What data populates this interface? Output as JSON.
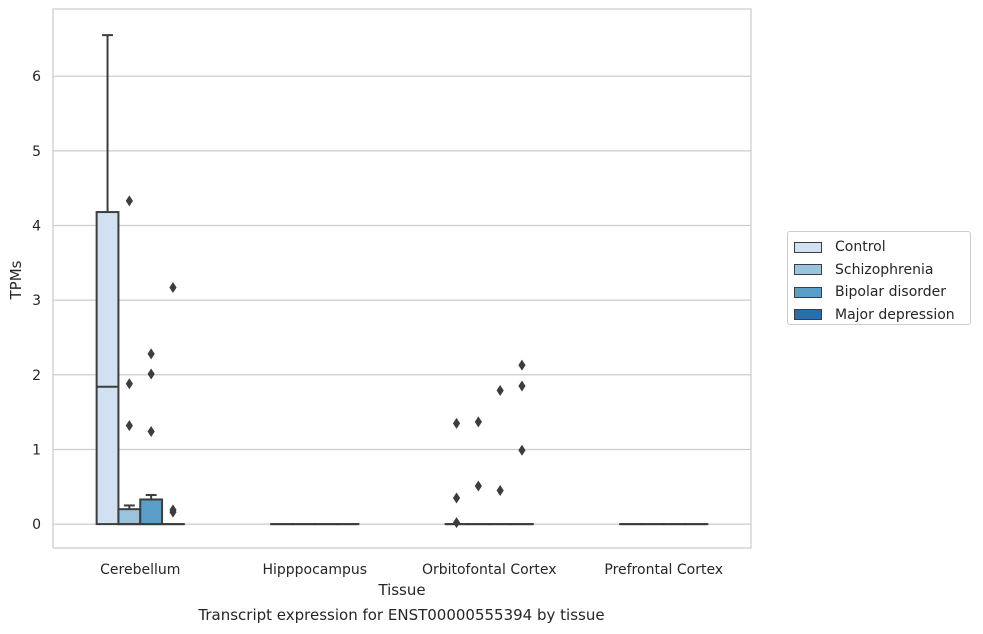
{
  "chart_data": {
    "type": "box",
    "xlabel": "Tissue",
    "ylabel": "TPMs",
    "caption": "Transcript expression for ENST00000555394 by tissue",
    "ylim": [
      -0.32,
      6.9
    ],
    "yticks": [
      0,
      1,
      2,
      3,
      4,
      5,
      6
    ],
    "categories": [
      "Cerebellum",
      "Hipppocampus",
      "Orbitofontal Cortex",
      "Prefrontal Cortex"
    ],
    "grid": "horizontal",
    "legend_position": "right",
    "series": [
      {
        "name": "Control",
        "color": "#d1e1f1",
        "boxes": [
          {
            "min": 0,
            "q1": 0,
            "median": 1.84,
            "q3": 4.18,
            "max": 6.55,
            "outliers": []
          },
          {
            "min": 0,
            "q1": 0,
            "median": 0,
            "q3": 0,
            "max": 0,
            "outliers": []
          },
          {
            "min": 0,
            "q1": 0,
            "median": 0,
            "q3": 0,
            "max": 0,
            "outliers": [
              1.35,
              0.35,
              0.02
            ]
          },
          {
            "min": 0,
            "q1": 0,
            "median": 0,
            "q3": 0,
            "max": 0,
            "outliers": []
          }
        ]
      },
      {
        "name": "Schizophrenia",
        "color": "#9ac3de",
        "boxes": [
          {
            "min": 0,
            "q1": 0,
            "median": 0,
            "q3": 0.2,
            "max": 0.25,
            "outliers": [
              4.33,
              1.88,
              1.32
            ]
          },
          {
            "min": 0,
            "q1": 0,
            "median": 0,
            "q3": 0,
            "max": 0,
            "outliers": []
          },
          {
            "min": 0,
            "q1": 0,
            "median": 0,
            "q3": 0,
            "max": 0,
            "outliers": [
              1.37,
              0.51
            ]
          },
          {
            "min": 0,
            "q1": 0,
            "median": 0,
            "q3": 0,
            "max": 0,
            "outliers": []
          }
        ]
      },
      {
        "name": "Bipolar disorder",
        "color": "#5a9ec9",
        "boxes": [
          {
            "min": 0,
            "q1": 0,
            "median": 0,
            "q3": 0.33,
            "max": 0.39,
            "outliers": [
              2.28,
              2.01,
              1.24
            ]
          },
          {
            "min": 0,
            "q1": 0,
            "median": 0,
            "q3": 0,
            "max": 0,
            "outliers": []
          },
          {
            "min": 0,
            "q1": 0,
            "median": 0,
            "q3": 0,
            "max": 0,
            "outliers": [
              1.79,
              0.45
            ]
          },
          {
            "min": 0,
            "q1": 0,
            "median": 0,
            "q3": 0,
            "max": 0,
            "outliers": []
          }
        ]
      },
      {
        "name": "Major depression",
        "color": "#2a6fad",
        "boxes": [
          {
            "min": 0,
            "q1": 0,
            "median": 0,
            "q3": 0,
            "max": 0,
            "outliers": [
              3.17,
              0.19,
              0.16
            ]
          },
          {
            "min": 0,
            "q1": 0,
            "median": 0,
            "q3": 0,
            "max": 0,
            "outliers": []
          },
          {
            "min": 0,
            "q1": 0,
            "median": 0,
            "q3": 0,
            "max": 0,
            "outliers": [
              2.13,
              1.85,
              0.99
            ]
          },
          {
            "min": 0,
            "q1": 0,
            "median": 0,
            "q3": 0,
            "max": 0,
            "outliers": []
          }
        ]
      }
    ]
  }
}
